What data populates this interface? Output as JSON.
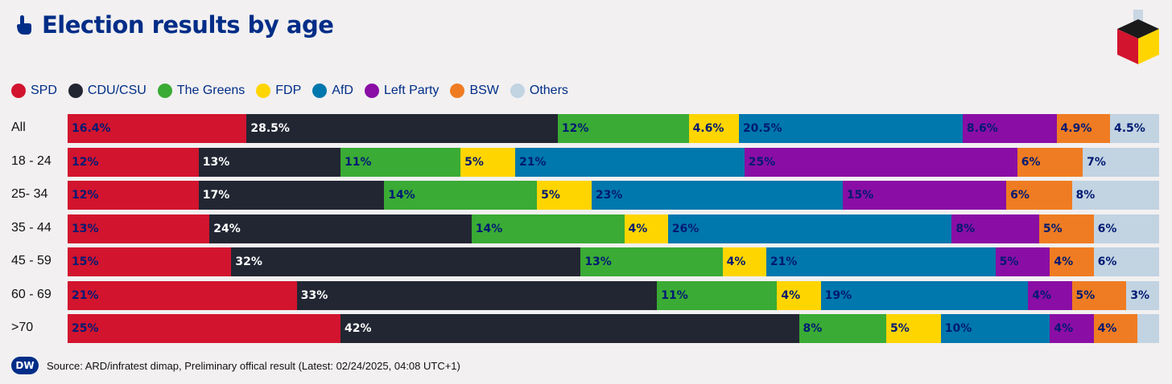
{
  "header": {
    "title": "Election results by age",
    "icon": "pointing-hand-icon"
  },
  "legend": [
    {
      "label": "SPD",
      "color": "#d2142e"
    },
    {
      "label": "CDU/CSU",
      "color": "#222633"
    },
    {
      "label": "The Greens",
      "color": "#3aab34"
    },
    {
      "label": "FDP",
      "color": "#ffd500"
    },
    {
      "label": "AfD",
      "color": "#0077ad"
    },
    {
      "label": "Left Party",
      "color": "#8a0ea5"
    },
    {
      "label": "BSW",
      "color": "#ef7c22"
    },
    {
      "label": "Others",
      "color": "#c2d3e2"
    }
  ],
  "chart_data": {
    "type": "bar",
    "orientation": "horizontal",
    "stacked": true,
    "categories": [
      "All",
      "18 - 24",
      "25- 34",
      "35 - 44",
      "45 - 59",
      "60 - 69",
      ">70"
    ],
    "series": [
      {
        "name": "SPD",
        "values": [
          16.4,
          12,
          12,
          13,
          15,
          21,
          25
        ],
        "labels": [
          "16.4%",
          "12%",
          "12%",
          "13%",
          "15%",
          "21%",
          "25%"
        ],
        "color": "#d2142e",
        "text_color": "#001a72"
      },
      {
        "name": "CDU/CSU",
        "values": [
          28.5,
          13,
          17,
          24,
          32,
          33,
          42
        ],
        "labels": [
          "28.5%",
          "13%",
          "17%",
          "24%",
          "32%",
          "33%",
          "42%"
        ],
        "color": "#222633",
        "text_color": "#ffffff"
      },
      {
        "name": "The Greens",
        "values": [
          12,
          11,
          14,
          14,
          13,
          11,
          8
        ],
        "labels": [
          "12%",
          "11%",
          "14%",
          "14%",
          "13%",
          "11%",
          "8%"
        ],
        "color": "#3aab34",
        "text_color": "#001a72"
      },
      {
        "name": "FDP",
        "values": [
          4.6,
          5,
          5,
          4,
          4,
          4,
          5
        ],
        "labels": [
          "4.6%",
          "5%",
          "5%",
          "4%",
          "4%",
          "4%",
          "5%"
        ],
        "color": "#ffd500",
        "text_color": "#001a72"
      },
      {
        "name": "AfD",
        "values": [
          20.5,
          21,
          23,
          26,
          21,
          19,
          10
        ],
        "labels": [
          "20.5%",
          "21%",
          "23%",
          "26%",
          "21%",
          "19%",
          "10%"
        ],
        "color": "#0077ad",
        "text_color": "#001a72"
      },
      {
        "name": "Left Party",
        "values": [
          8.6,
          25,
          15,
          8,
          5,
          4,
          4
        ],
        "labels": [
          "8.6%",
          "25%",
          "15%",
          "8%",
          "5%",
          "4%",
          "4%"
        ],
        "color": "#8a0ea5",
        "text_color": "#001a72"
      },
      {
        "name": "BSW",
        "values": [
          4.9,
          6,
          6,
          5,
          4,
          5,
          4
        ],
        "labels": [
          "4.9%",
          "6%",
          "6%",
          "5%",
          "4%",
          "5%",
          "4%"
        ],
        "color": "#ef7c22",
        "text_color": "#001a72"
      },
      {
        "name": "Others",
        "values": [
          4.5,
          7,
          8,
          6,
          6,
          3,
          2
        ],
        "labels": [
          "4.5%",
          "7%",
          "8%",
          "6%",
          "6%",
          "3%",
          ""
        ],
        "color": "#c2d3e2",
        "text_color": "#001a72"
      }
    ],
    "xlim": [
      0,
      100
    ]
  },
  "footer": {
    "logo_text": "DW",
    "source": "Source: ARD/infratest dimap, Preliminary offical result (Latest: 02/24/2025, 04:08 UTC+1)"
  }
}
